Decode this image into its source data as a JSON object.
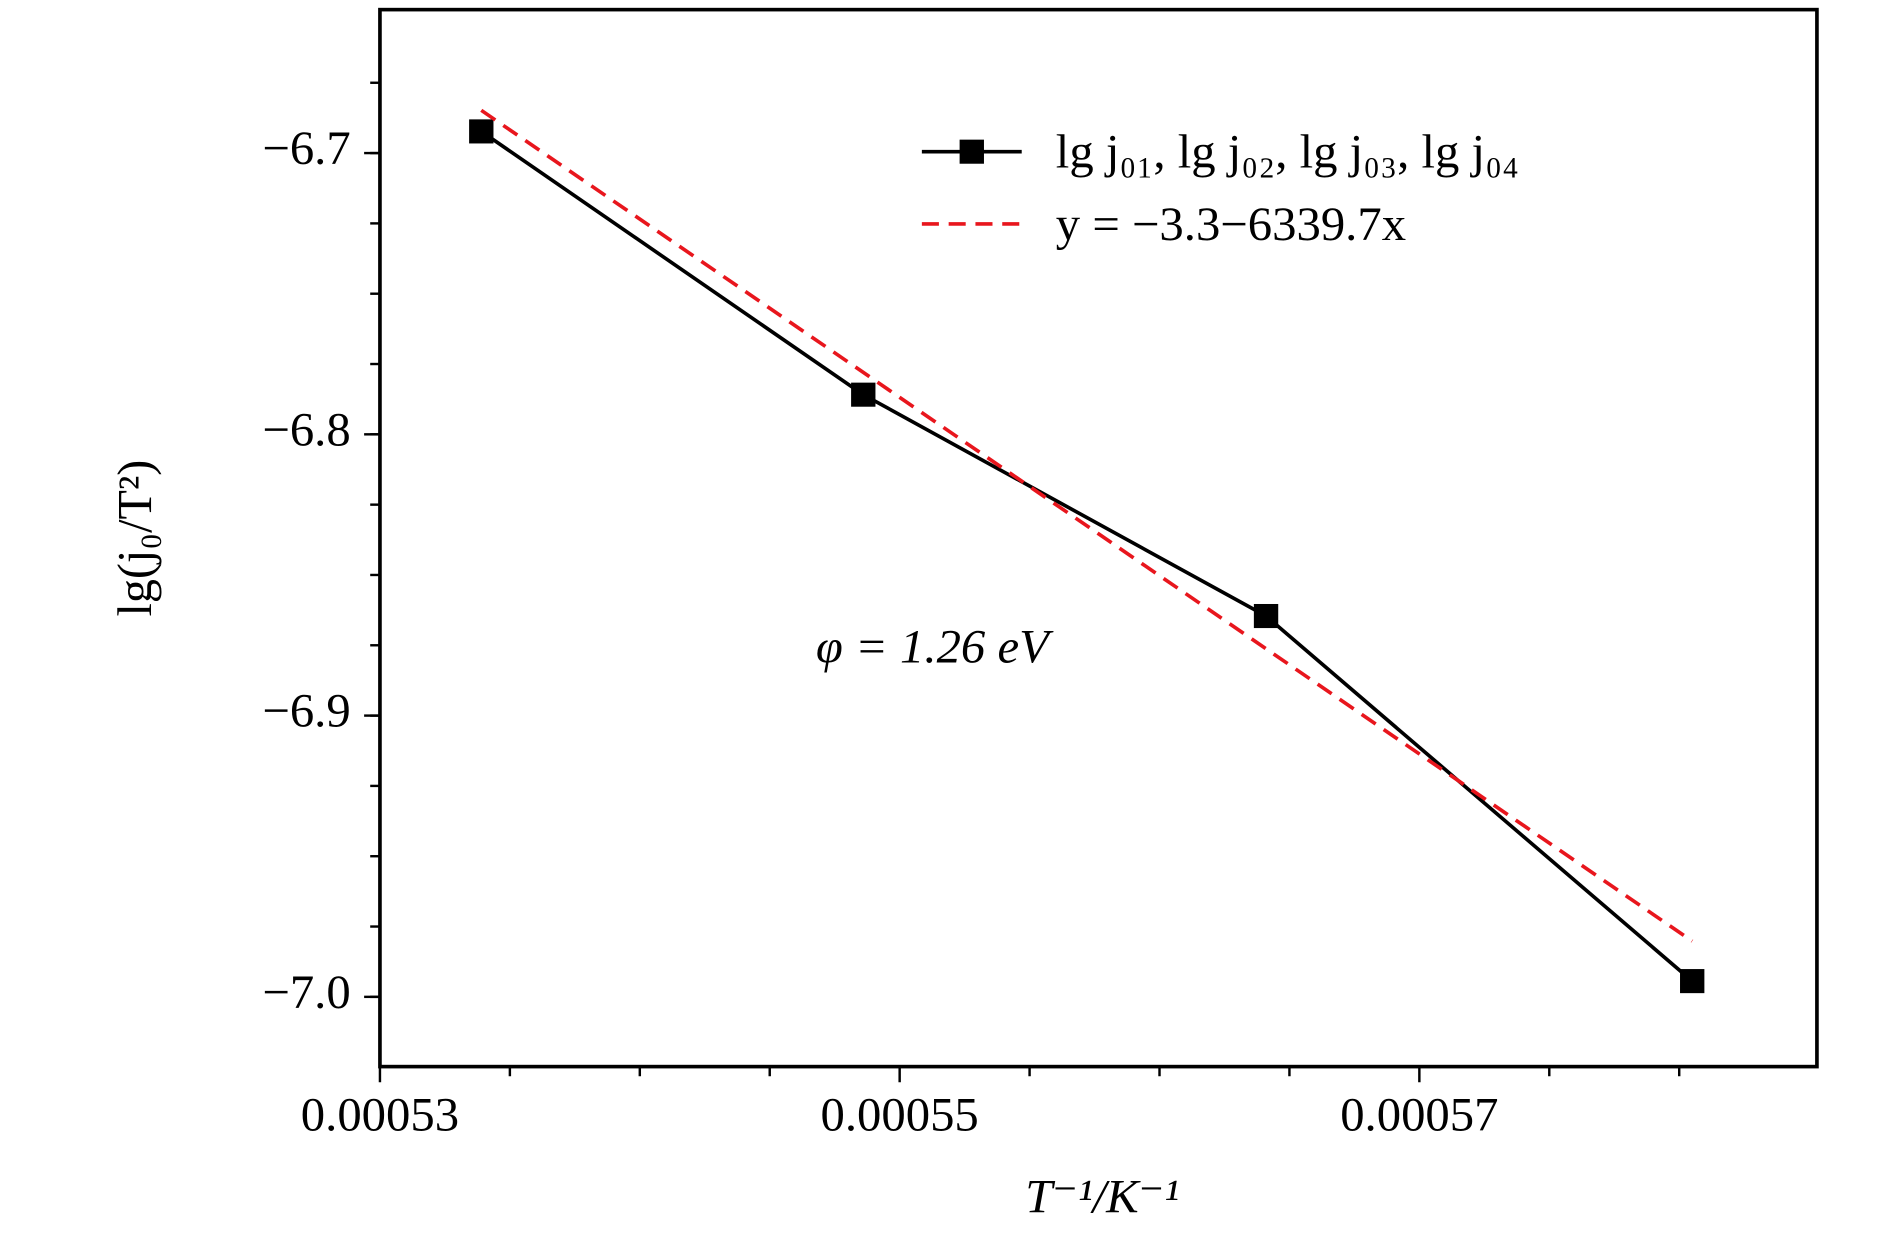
{
  "chart_data": {
    "type": "line",
    "x_label": "T⁻¹/K⁻¹",
    "y_label": "lg(j₀/T²)",
    "annotation": "φ = 1.26 eV",
    "legend": "upper right",
    "series": [
      {
        "name": "lg j₀₁, lg j₀₂, lg j₀₃, lg j₀₄",
        "color": "#000000",
        "marker": "square",
        "x": [
          0.0005339,
          0.0005486,
          0.0005641,
          0.0005805
        ],
        "values": [
          -6.6923,
          -6.7859,
          -6.8646,
          -6.9944
        ]
      },
      {
        "name": "y = −3.3−6339.7x",
        "color": "#e8161d",
        "dashed": true,
        "x": [
          0.0005339,
          0.0005805
        ],
        "values": [
          -6.6848,
          -6.9802
        ]
      }
    ],
    "xlim": [
      0.00053,
      0.0005853
    ],
    "ylim": [
      -7.0248,
      -6.649
    ],
    "xticks": [
      0.00053,
      0.00055,
      0.00057
    ],
    "xminorticks": [
      0.000535,
      0.00054,
      0.000545,
      0.000555,
      0.00056,
      0.000565,
      0.000575,
      0.00058
    ],
    "yticks": [
      {
        "value": -7.0,
        "label": "−7.0"
      },
      {
        "value": -6.9,
        "label": "−6.9"
      },
      {
        "value": -6.8,
        "label": "−6.8"
      },
      {
        "value": -6.7,
        "label": "−6.7"
      }
    ],
    "yminorticks": [
      -7.0,
      -6.975,
      -6.95,
      -6.925,
      -6.9,
      -6.875,
      -6.85,
      -6.825,
      -6.8,
      -6.775,
      -6.75,
      -6.725,
      -6.7,
      -6.675
    ]
  }
}
